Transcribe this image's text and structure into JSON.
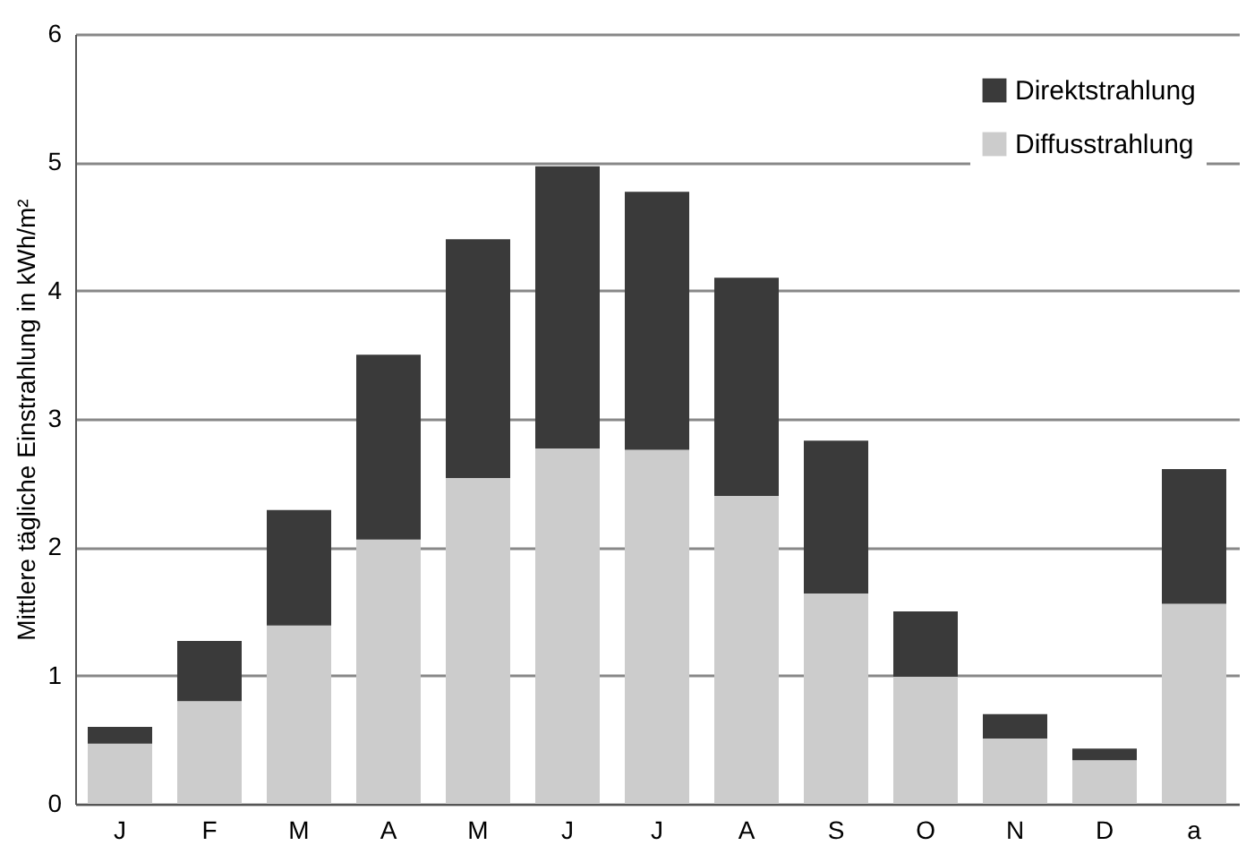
{
  "chart_data": {
    "type": "bar",
    "stacked": true,
    "ylabel": "Mittlere tägliche Einstrahlung in kWh/m²",
    "categories": [
      "J",
      "F",
      "M",
      "A",
      "M",
      "J",
      "J",
      "A",
      "S",
      "O",
      "N",
      "D",
      "a"
    ],
    "series": [
      {
        "name": "Diffusstrahlung",
        "color": "#cccccc",
        "values": [
          0.47,
          0.8,
          1.39,
          2.06,
          2.54,
          2.77,
          2.76,
          2.4,
          1.64,
          0.99,
          0.51,
          0.34,
          1.56
        ]
      },
      {
        "name": "Direktstrahlung",
        "color": "#3a3a3a",
        "values": [
          0.13,
          0.47,
          0.9,
          1.44,
          1.86,
          2.2,
          2.01,
          1.7,
          1.19,
          0.51,
          0.19,
          0.09,
          1.05
        ]
      }
    ],
    "ylim": [
      0,
      6
    ],
    "yticks": [
      0,
      1,
      2,
      3,
      4,
      5,
      6
    ],
    "grid": "y",
    "legend": "top right"
  }
}
